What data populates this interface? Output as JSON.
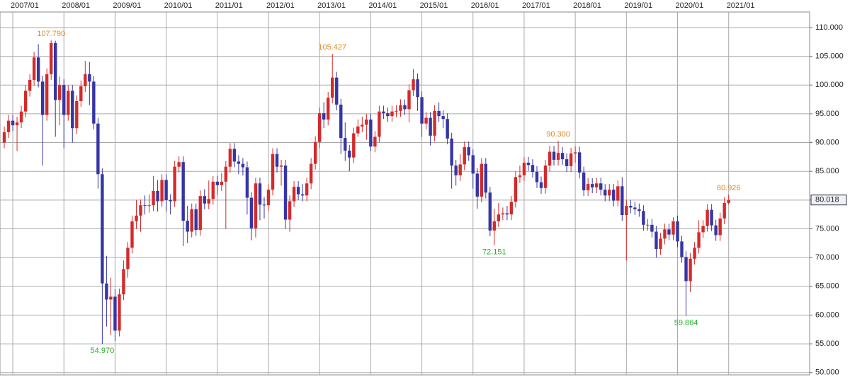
{
  "chart_data": {
    "type": "candlestick",
    "x": [
      "2006/11",
      "2006/12",
      "2007/01",
      "2007/02",
      "2007/03",
      "2007/04",
      "2007/05",
      "2007/06",
      "2007/07",
      "2007/08",
      "2007/09",
      "2007/10",
      "2007/11",
      "2007/12",
      "2008/01",
      "2008/02",
      "2008/03",
      "2008/04",
      "2008/05",
      "2008/06",
      "2008/07",
      "2008/08",
      "2008/09",
      "2008/10",
      "2008/11",
      "2008/12",
      "2009/01",
      "2009/02",
      "2009/03",
      "2009/04",
      "2009/05",
      "2009/06",
      "2009/07",
      "2009/08",
      "2009/09",
      "2009/10",
      "2009/11",
      "2009/12",
      "2010/01",
      "2010/02",
      "2010/03",
      "2010/04",
      "2010/05",
      "2010/06",
      "2010/07",
      "2010/08",
      "2010/09",
      "2010/10",
      "2010/11",
      "2010/12",
      "2011/01",
      "2011/02",
      "2011/03",
      "2011/04",
      "2011/05",
      "2011/06",
      "2011/07",
      "2011/08",
      "2011/09",
      "2011/10",
      "2011/11",
      "2011/12",
      "2012/01",
      "2012/02",
      "2012/03",
      "2012/04",
      "2012/05",
      "2012/06",
      "2012/07",
      "2012/08",
      "2012/09",
      "2012/10",
      "2012/11",
      "2012/12",
      "2013/01",
      "2013/02",
      "2013/03",
      "2013/04",
      "2013/05",
      "2013/06",
      "2013/07",
      "2013/08",
      "2013/09",
      "2013/10",
      "2013/11",
      "2013/12",
      "2014/01",
      "2014/02",
      "2014/03",
      "2014/04",
      "2014/05",
      "2014/06",
      "2014/07",
      "2014/08",
      "2014/09",
      "2014/10",
      "2014/11",
      "2014/12",
      "2015/01",
      "2015/02",
      "2015/03",
      "2015/04",
      "2015/05",
      "2015/06",
      "2015/07",
      "2015/08",
      "2015/09",
      "2015/10",
      "2015/11",
      "2015/12",
      "2016/01",
      "2016/02",
      "2016/03",
      "2016/04",
      "2016/05",
      "2016/06",
      "2016/07",
      "2016/08",
      "2016/09",
      "2016/10",
      "2016/11",
      "2016/12",
      "2017/01",
      "2017/02",
      "2017/03",
      "2017/04",
      "2017/05",
      "2017/06",
      "2017/07",
      "2017/08",
      "2017/09",
      "2017/10",
      "2017/11",
      "2017/12",
      "2018/01",
      "2018/02",
      "2018/03",
      "2018/04",
      "2018/05",
      "2018/06",
      "2018/07",
      "2018/08",
      "2018/09",
      "2018/10",
      "2018/11",
      "2018/12",
      "2019/01",
      "2019/02",
      "2019/03",
      "2019/04",
      "2019/05",
      "2019/06",
      "2019/07",
      "2019/08",
      "2019/09",
      "2019/10",
      "2019/11",
      "2019/12",
      "2020/01",
      "2020/02",
      "2020/03",
      "2020/04",
      "2020/05",
      "2020/06",
      "2020/07",
      "2020/08",
      "2020/09",
      "2020/10",
      "2020/11",
      "2020/12",
      "2021/01"
    ],
    "open": [
      90.0,
      91.8,
      93.8,
      93.0,
      93.5,
      95.4,
      99.0,
      100.9,
      104.8,
      100.6,
      94.8,
      101.9,
      107.3,
      97.4,
      100.0,
      94.8,
      99.0,
      92.5,
      97.2,
      99.8,
      101.9,
      100.6,
      93.3,
      84.5,
      65.5,
      62.7,
      63.2,
      57.3,
      63.6,
      68.0,
      71.7,
      76.3,
      77.3,
      79.1,
      79.0,
      79.1,
      81.6,
      79.8,
      83.5,
      80.0,
      79.8,
      85.8,
      86.6,
      76.4,
      74.5,
      78.4,
      74.8,
      80.7,
      79.4,
      80.2,
      83.2,
      82.6,
      83.2,
      85.8,
      88.9,
      86.7,
      86.3,
      85.7,
      80.4,
      75.1,
      82.9,
      79.2,
      79.1,
      81.8,
      88.0,
      85.8,
      86.0,
      76.6,
      79.8,
      82.3,
      81.0,
      80.8,
      82.9,
      86.3,
      90.1,
      95.1,
      94.0,
      97.8,
      101.3,
      96.6,
      90.8,
      88.6,
      87.4,
      91.6,
      92.8,
      93.1,
      94.0,
      89.3,
      91.0,
      95.4,
      95.1,
      94.6,
      95.4,
      95.5,
      96.5,
      95.8,
      99.1,
      101.0,
      97.9,
      93.3,
      94.3,
      91.2,
      95.5,
      94.6,
      94.1,
      90.7,
      86.0,
      84.3,
      86.2,
      89.2,
      87.8,
      84.6,
      80.6,
      86.3,
      81.3,
      74.7,
      76.3,
      77.5,
      77.7,
      77.5,
      79.7,
      84.0,
      84.3,
      86.5,
      86.1,
      84.9,
      83.1,
      82.1,
      86.0,
      88.4,
      87.0,
      88.2,
      87.1,
      85.9,
      88.1,
      88.3,
      84.8,
      81.7,
      82.8,
      82.2,
      82.9,
      81.8,
      80.8,
      81.8,
      79.9,
      82.4,
      77.4,
      79.0,
      78.7,
      78.4,
      78.1,
      75.7,
      75.7,
      74.5,
      71.5,
      73.3,
      74.9,
      74.0,
      76.3,
      72.8,
      70.1,
      65.9,
      69.8,
      71.7,
      74.4,
      75.5,
      78.3,
      75.6,
      73.9,
      76.8,
      79.5
    ],
    "high": [
      92.8,
      94.8,
      94.8,
      94.5,
      96.4,
      100.0,
      101.9,
      105.8,
      107.1,
      101.6,
      102.9,
      107.79,
      107.7,
      101.5,
      101.0,
      100.0,
      100.0,
      98.2,
      100.8,
      104.2,
      104.0,
      101.6,
      94.3,
      85.5,
      70.3,
      66.5,
      64.5,
      64.6,
      69.5,
      72.7,
      77.3,
      80.0,
      80.1,
      80.8,
      81.0,
      84.2,
      83.5,
      84.5,
      84.5,
      81.0,
      86.8,
      87.6,
      87.6,
      79.0,
      79.4,
      79.4,
      81.7,
      81.9,
      83.4,
      84.2,
      84.2,
      84.7,
      86.8,
      89.9,
      89.9,
      87.8,
      87.3,
      86.7,
      81.4,
      83.9,
      83.9,
      80.5,
      82.8,
      89.0,
      89.0,
      87.0,
      87.0,
      80.8,
      83.3,
      83.3,
      82.8,
      83.9,
      87.3,
      91.1,
      96.1,
      97.0,
      98.8,
      105.427,
      102.3,
      97.6,
      93.5,
      89.6,
      92.6,
      94.0,
      94.5,
      95.0,
      95.0,
      92.0,
      96.4,
      96.4,
      96.1,
      96.4,
      96.5,
      97.5,
      97.5,
      100.1,
      102.8,
      102.0,
      98.9,
      95.3,
      95.3,
      96.5,
      97.0,
      95.6,
      95.1,
      91.7,
      87.0,
      88.0,
      90.2,
      90.2,
      88.8,
      85.6,
      87.3,
      87.3,
      82.3,
      78.5,
      79.5,
      78.7,
      79.0,
      80.7,
      85.0,
      86.0,
      87.5,
      87.5,
      87.1,
      85.9,
      84.1,
      87.0,
      89.4,
      89.4,
      90.3,
      89.2,
      88.1,
      89.1,
      89.3,
      89.3,
      85.8,
      83.8,
      83.8,
      83.9,
      83.9,
      82.8,
      82.8,
      82.8,
      83.4,
      84.0,
      80.0,
      80.0,
      79.7,
      79.4,
      79.1,
      76.7,
      76.7,
      75.5,
      74.3,
      75.9,
      75.9,
      77.0,
      77.3,
      73.8,
      71.1,
      70.8,
      72.7,
      76.5,
      76.5,
      79.3,
      79.3,
      76.6,
      77.8,
      80.5,
      80.926
    ],
    "low": [
      89.0,
      90.8,
      92.0,
      88.5,
      92.5,
      94.4,
      98.0,
      99.9,
      99.6,
      86.0,
      93.8,
      100.9,
      91.0,
      93.0,
      89.0,
      93.8,
      90.0,
      91.5,
      96.2,
      98.8,
      96.5,
      92.3,
      82.0,
      54.97,
      58.0,
      56.5,
      55.5,
      56.3,
      62.6,
      66.5,
      70.7,
      75.0,
      74.5,
      77.5,
      77.8,
      78.1,
      78.0,
      78.8,
      78.0,
      77.5,
      78.8,
      84.8,
      72.0,
      72.5,
      73.5,
      73.8,
      73.8,
      78.4,
      78.4,
      79.2,
      80.9,
      81.6,
      75.0,
      84.8,
      85.7,
      84.5,
      84.3,
      77.5,
      73.0,
      73.5,
      76.5,
      76.8,
      78.1,
      80.8,
      84.8,
      82.5,
      75.0,
      74.5,
      78.8,
      80.0,
      79.8,
      79.8,
      81.9,
      85.3,
      89.1,
      92.5,
      93.0,
      96.8,
      95.6,
      88.0,
      86.8,
      85.0,
      86.4,
      91.0,
      91.8,
      90.5,
      88.5,
      88.3,
      90.0,
      94.1,
      93.6,
      93.6,
      94.4,
      94.5,
      94.8,
      93.5,
      98.1,
      95.5,
      91.0,
      92.3,
      89.5,
      90.2,
      93.6,
      92.5,
      89.7,
      82.0,
      82.5,
      83.3,
      85.2,
      86.8,
      82.0,
      78.5,
      79.6,
      80.3,
      73.7,
      72.151,
      75.3,
      76.5,
      76.5,
      76.5,
      78.7,
      83.0,
      83.3,
      85.1,
      83.9,
      82.1,
      81.1,
      81.1,
      85.0,
      86.0,
      86.0,
      86.1,
      84.9,
      84.9,
      86.5,
      83.8,
      80.7,
      80.7,
      81.2,
      81.2,
      80.8,
      79.8,
      79.8,
      78.9,
      78.9,
      76.4,
      69.5,
      77.7,
      77.4,
      77.1,
      74.7,
      74.7,
      73.5,
      70.0,
      70.5,
      72.3,
      73.0,
      73.0,
      71.8,
      69.1,
      59.864,
      64.0,
      68.8,
      70.7,
      73.4,
      74.5,
      74.6,
      72.9,
      72.9,
      75.8,
      79.2
    ],
    "close": [
      91.8,
      93.8,
      93.0,
      93.5,
      95.4,
      99.0,
      100.9,
      104.8,
      100.6,
      94.8,
      101.9,
      107.3,
      97.4,
      100.0,
      94.8,
      99.0,
      92.5,
      97.2,
      99.8,
      101.9,
      100.6,
      93.3,
      84.5,
      65.5,
      62.7,
      63.2,
      57.3,
      63.6,
      68.0,
      71.7,
      76.3,
      77.3,
      79.1,
      79.0,
      79.1,
      81.6,
      79.8,
      83.5,
      80.0,
      79.8,
      85.8,
      86.6,
      76.4,
      74.5,
      78.4,
      74.8,
      80.7,
      79.4,
      80.2,
      83.2,
      82.6,
      83.2,
      85.8,
      88.9,
      86.7,
      86.3,
      85.7,
      80.4,
      75.1,
      82.9,
      79.2,
      79.1,
      81.8,
      88.0,
      85.8,
      86.0,
      76.6,
      79.8,
      82.3,
      81.0,
      80.8,
      82.9,
      86.3,
      90.1,
      95.1,
      94.0,
      97.8,
      101.3,
      96.6,
      90.8,
      88.6,
      87.4,
      91.6,
      92.8,
      93.1,
      94.0,
      89.3,
      91.0,
      95.4,
      95.1,
      94.6,
      95.4,
      95.5,
      96.5,
      95.8,
      99.1,
      101.0,
      97.9,
      93.3,
      94.3,
      91.2,
      95.5,
      94.6,
      94.1,
      90.7,
      86.0,
      84.3,
      86.2,
      89.2,
      87.8,
      84.6,
      80.6,
      86.3,
      81.3,
      74.7,
      76.3,
      77.5,
      77.7,
      77.5,
      79.7,
      84.0,
      84.3,
      86.5,
      86.1,
      84.9,
      83.1,
      82.1,
      86.0,
      88.4,
      87.0,
      88.2,
      87.1,
      85.9,
      88.1,
      88.3,
      84.8,
      81.7,
      82.8,
      82.2,
      82.9,
      81.8,
      80.8,
      81.8,
      79.9,
      82.4,
      77.4,
      79.0,
      78.7,
      78.4,
      78.1,
      75.7,
      75.7,
      74.5,
      71.5,
      73.3,
      74.9,
      74.0,
      76.3,
      72.8,
      70.1,
      65.9,
      69.8,
      71.7,
      74.4,
      75.5,
      78.3,
      75.6,
      73.9,
      76.8,
      79.5,
      80.018
    ],
    "up_color": "#d42a2a",
    "down_color": "#3535a5",
    "annotations": [
      {
        "x": "2007/10",
        "value": 107.79,
        "label": "107.790",
        "kind": "high",
        "color": "#e08a2a"
      },
      {
        "x": "2008/10",
        "value": 54.97,
        "label": "54.970",
        "kind": "low",
        "color": "#2eaa2e"
      },
      {
        "x": "2013/04",
        "value": 105.427,
        "label": "105.427",
        "kind": "high",
        "color": "#e08a2a"
      },
      {
        "x": "2016/06",
        "value": 72.151,
        "label": "72.151",
        "kind": "low",
        "color": "#2eaa2e"
      },
      {
        "x": "2017/09",
        "value": 90.3,
        "label": "90.300",
        "kind": "high",
        "color": "#e08a2a"
      },
      {
        "x": "2020/03",
        "value": 59.864,
        "label": "59.864",
        "kind": "low",
        "color": "#2eaa2e"
      },
      {
        "x": "2021/01",
        "value": 80.926,
        "label": "80.926",
        "kind": "high",
        "color": "#e08a2a"
      }
    ],
    "last_price": 80.018,
    "xlim": [
      "2006/10",
      "2022/08"
    ],
    "xticks": [
      "2007/01",
      "2008/01",
      "2009/01",
      "2010/01",
      "2011/01",
      "2012/01",
      "2013/01",
      "2014/01",
      "2015/01",
      "2016/01",
      "2017/01",
      "2018/01",
      "2019/01",
      "2020/01",
      "2021/01"
    ],
    "ylim": [
      49.6,
      112.7
    ],
    "yticks": [
      {
        "value": 50,
        "label": "50.000"
      },
      {
        "value": 55,
        "label": "55.000"
      },
      {
        "value": 60,
        "label": "60.000"
      },
      {
        "value": 65,
        "label": "65.000"
      },
      {
        "value": 70,
        "label": "70.000"
      },
      {
        "value": 75,
        "label": "75.000"
      },
      {
        "value": 80,
        "label": "80.000"
      },
      {
        "value": 85,
        "label": "85.000"
      },
      {
        "value": 90,
        "label": "90.000"
      },
      {
        "value": 95,
        "label": "95.000"
      },
      {
        "value": 100,
        "label": "100.000"
      },
      {
        "value": 105,
        "label": "105.000"
      },
      {
        "value": 110,
        "label": "110.000"
      }
    ],
    "grid": true
  }
}
